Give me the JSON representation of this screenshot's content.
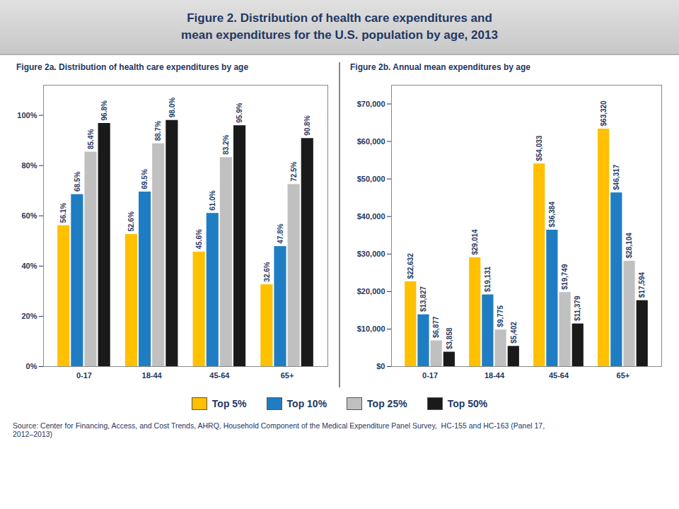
{
  "title": "Figure 2. Distribution of health care expenditures and\nmean expenditures for the U.S. population by age, 2013",
  "source": "Source: Center for Financing, Access, and Cost Trends, AHRQ, Household Component of the Medical Expenditure Panel Survey,  HC-155 and HC-163 (Panel 17,\n2012–2013)",
  "chart_data": [
    {
      "type": "bar",
      "subtitle": "Figure 2a. Distribution  of health care expenditures by age",
      "categories": [
        "0-17",
        "18-44",
        "45-64",
        "65+"
      ],
      "series": [
        {
          "name": "Top 5%",
          "color": "#FFC000",
          "values": [
            56.1,
            52.6,
            45.6,
            32.6
          ],
          "value_labels": [
            "56.1%",
            "52.6%",
            "45.6%",
            "32.6%"
          ]
        },
        {
          "name": "Top 10%",
          "color": "#1F7DC4",
          "values": [
            68.5,
            69.5,
            61.0,
            47.8
          ],
          "value_labels": [
            "68.5%",
            "69.5%",
            "61.0%",
            "47.8%"
          ]
        },
        {
          "name": "Top 25%",
          "color": "#C0C0C0",
          "values": [
            85.4,
            88.7,
            83.2,
            72.5
          ],
          "value_labels": [
            "85.4%",
            "88.7%",
            "83.2%",
            "72.5%"
          ]
        },
        {
          "name": "Top 50%",
          "color": "#1A1A1A",
          "values": [
            96.8,
            98.0,
            95.9,
            90.8
          ],
          "value_labels": [
            "96.8%",
            "98.0%",
            "95.9%",
            "90.8%"
          ]
        }
      ],
      "ylim": [
        0,
        112
      ],
      "yticks": [
        {
          "value": 0,
          "label": "0%"
        },
        {
          "value": 20,
          "label": "20%"
        },
        {
          "value": 40,
          "label": "40%"
        },
        {
          "value": 60,
          "label": "60%"
        },
        {
          "value": 80,
          "label": "80%"
        },
        {
          "value": 100,
          "label": "100%"
        }
      ],
      "data_labels": true,
      "grid": false,
      "legend": "bottom"
    },
    {
      "type": "bar",
      "subtitle": "Figure 2b. Annual mean expenditures by age",
      "categories": [
        "0-17",
        "18-44",
        "45-64",
        "65+"
      ],
      "series": [
        {
          "name": "Top 5%",
          "color": "#FFC000",
          "values": [
            22632,
            29014,
            54033,
            63320
          ],
          "value_labels": [
            "$22,632",
            "$29,014",
            "$54,033",
            "$63,320"
          ]
        },
        {
          "name": "Top 10%",
          "color": "#1F7DC4",
          "values": [
            13827,
            19131,
            36384,
            46317
          ],
          "value_labels": [
            "$13,827",
            "$19,131",
            "$36,384",
            "$46,317"
          ]
        },
        {
          "name": "Top 25%",
          "color": "#C0C0C0",
          "values": [
            6877,
            9775,
            19749,
            28104
          ],
          "value_labels": [
            "$6,877",
            "$9,775",
            "$19,749",
            "$28,104"
          ]
        },
        {
          "name": "Top 50%",
          "color": "#1A1A1A",
          "values": [
            3858,
            5402,
            11379,
            17594
          ],
          "value_labels": [
            "$3,858",
            "$5,402",
            "$11,379",
            "$17,594"
          ]
        }
      ],
      "ylim": [
        0,
        75000
      ],
      "yticks": [
        {
          "value": 0,
          "label": "$0"
        },
        {
          "value": 10000,
          "label": "$10,000"
        },
        {
          "value": 20000,
          "label": "$20,000"
        },
        {
          "value": 30000,
          "label": "$30,000"
        },
        {
          "value": 40000,
          "label": "$40,000"
        },
        {
          "value": 50000,
          "label": "$50,000"
        },
        {
          "value": 60000,
          "label": "$60,000"
        },
        {
          "value": 70000,
          "label": "$70,000"
        }
      ],
      "data_labels": true,
      "grid": false,
      "legend": "bottom"
    }
  ]
}
